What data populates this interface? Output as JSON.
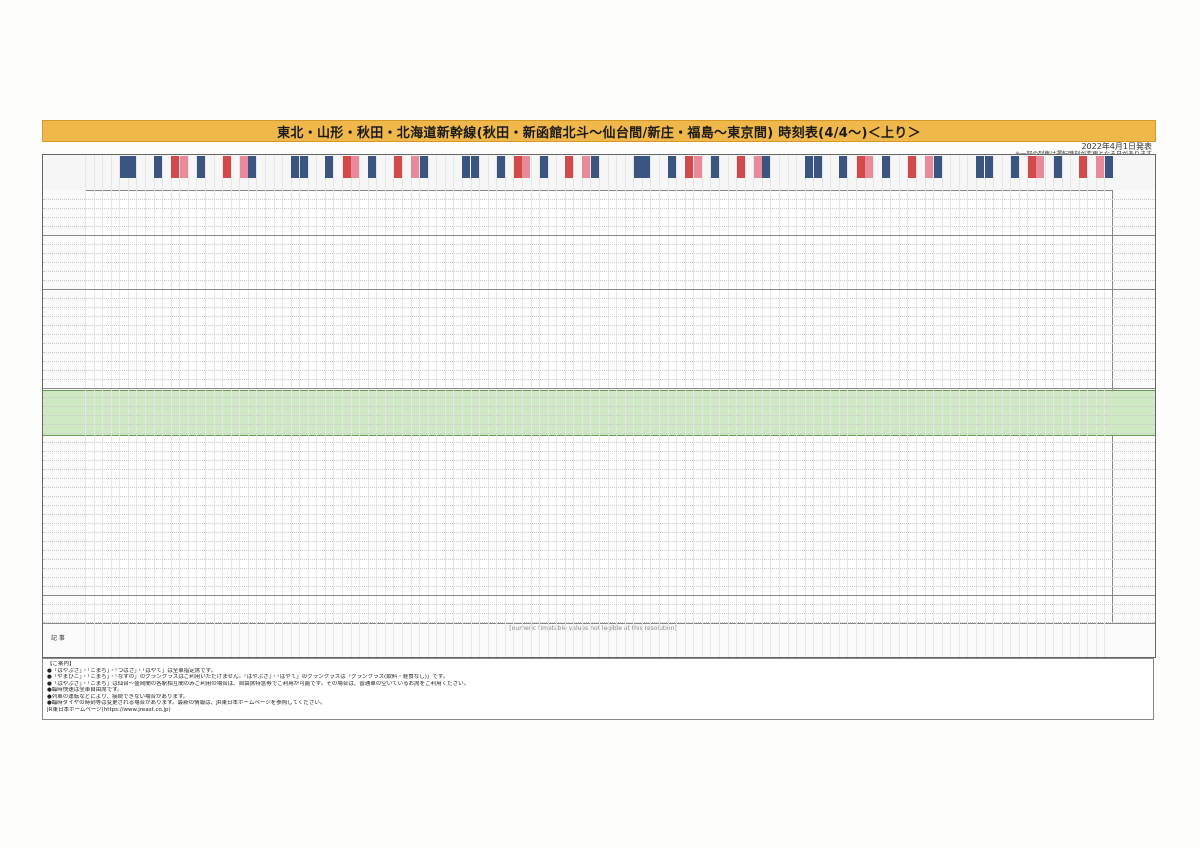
{
  "header": {
    "title": "東北・山形・秋田・北海道新幹線(秋田・新函館北斗～仙台間/新庄・福島～東京間) 時刻表(4/4～)＜上り＞",
    "issue_date": "2022年4月1日発表",
    "note": "※一部の列車は運転時刻が変更となる日があります"
  },
  "timetable": {
    "placeholder": "[numeric timetable values not legible at this resolution]",
    "remarks_label": "記 事"
  },
  "guide": {
    "heading": "【ご案内】",
    "lines": [
      "●「はやぶさ」・「こまち」・「つばさ」・「はやて」は全車指定席です。",
      "●「やまびこ」・「こまち」・「なすの」のグランクラスはご利用いただけません。「はやぶさ」・「はやて」のグランクラスは「グランクラス(飲料・軽食なし)」です。",
      "●「はやぶさ」・「こまち」は仙台～盛岡間の各駅相互間のみご利用の場合は、自由席特急券でご利用が可能です。その場合は、普通車の空いているお席をご利用ください。",
      "●臨時快速は全車自由席です。",
      "●列車の運転などにより、接続できない場合があります。",
      "●臨時ダイヤの時刻等は変更される場合があります。最新の情報は、JR東日本ホームページを参照してください。",
      "JR東日本ホームページ(https://www.jreast.co.jp)"
    ]
  }
}
